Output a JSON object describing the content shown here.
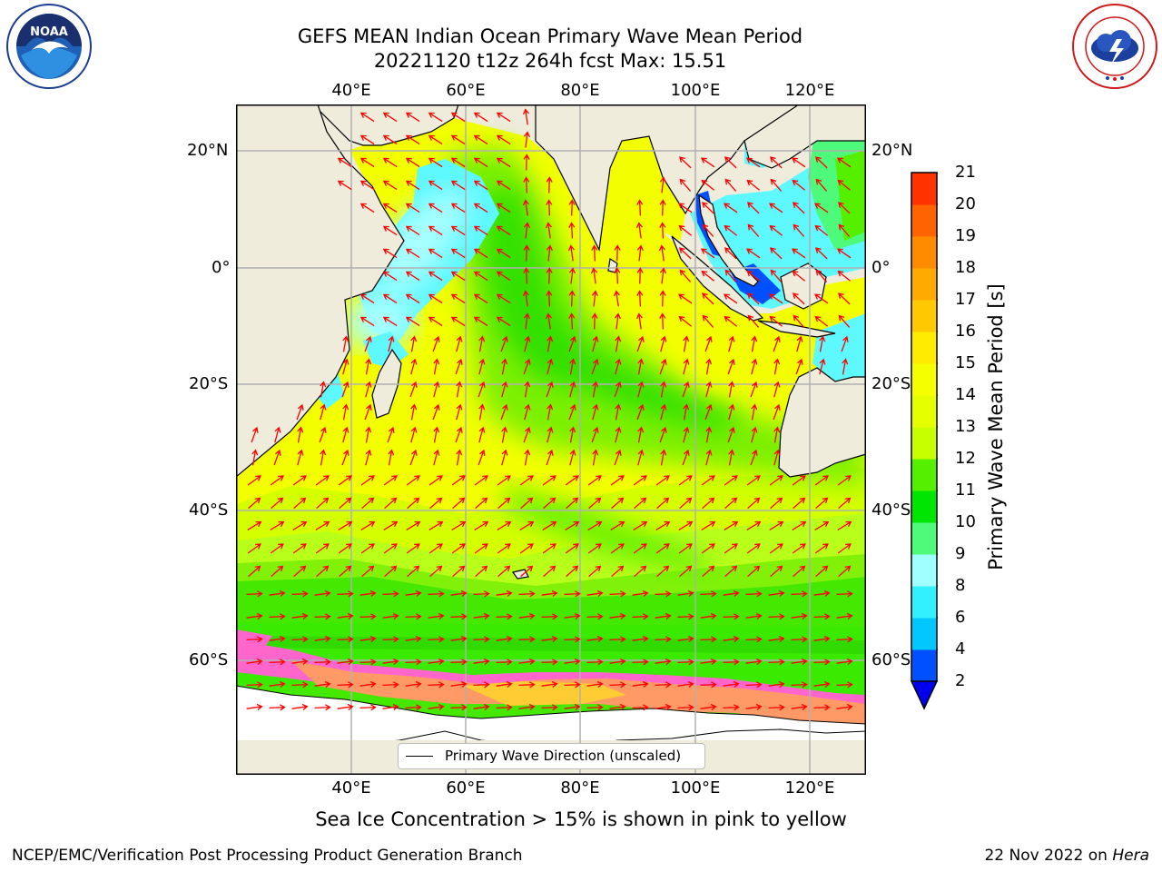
{
  "title_line1": "GEFS MEAN Indian Ocean Primary Wave Mean Period",
  "title_line2": "20221120 t12z 264h fcst   Max: 15.51",
  "logos": {
    "left": "noaa-logo",
    "right": "nws-logo"
  },
  "map": {
    "lon_labels": [
      "40°E",
      "60°E",
      "80°E",
      "100°E",
      "120°E"
    ],
    "lat_labels": [
      "20°N",
      "0°",
      "20°S",
      "40°S",
      "60°S"
    ],
    "lon_values": [
      40,
      60,
      80,
      100,
      120
    ],
    "lat_values": [
      20,
      0,
      -20,
      -40,
      -60
    ],
    "extent": {
      "lon": [
        20,
        130
      ],
      "lat": [
        -77,
        28
      ]
    },
    "land_color": "#efecdc",
    "grid_color": "#b0b0b0",
    "arrow_color": "#ff0000"
  },
  "colorbar": {
    "ticks": [
      "2",
      "4",
      "6",
      "8",
      "9",
      "10",
      "11",
      "12",
      "13",
      "14",
      "15",
      "16",
      "17",
      "18",
      "19",
      "20",
      "21"
    ],
    "colors": [
      "#0050ff",
      "#00c8ff",
      "#33f0ff",
      "#a0ffff",
      "#4dfa7a",
      "#00e600",
      "#55f000",
      "#c8ff00",
      "#e6ff00",
      "#f5ff00",
      "#ffeb00",
      "#ffc800",
      "#ffaa00",
      "#ff8c00",
      "#ff6400",
      "#ff3200"
    ],
    "label": "Primary Wave Mean Period [s]"
  },
  "legend_label": "Primary Wave Direction (unscaled)",
  "caption": "Sea Ice Concentration > 15% is shown in pink to yellow",
  "footer_left": "NCEP/EMC/Verification Post Processing Product Generation Branch",
  "footer_date": "22 Nov 2022 on ",
  "footer_host": "Hera"
}
